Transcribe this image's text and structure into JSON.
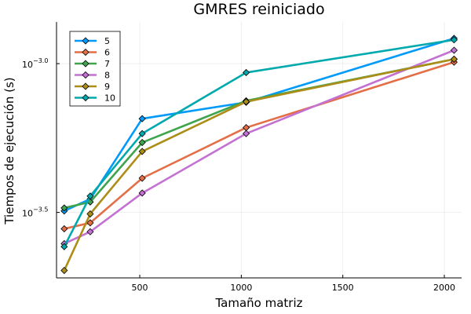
{
  "chart_data": {
    "type": "line",
    "title": "GMRES reiniciado",
    "xlabel": "Tamaño matriz",
    "ylabel": "Tiempos de ejecución (s)",
    "y_scale": "log10",
    "xlim": [
      90,
      2085
    ],
    "ylim_log10": [
      -3.72,
      -2.86
    ],
    "x_ticks": [
      500,
      1000,
      1500,
      2000
    ],
    "y_ticks": [
      {
        "log10": -3.5,
        "label": "10",
        "exp": "−3.5"
      },
      {
        "log10": -3.0,
        "label": "10",
        "exp": "−3.0"
      }
    ],
    "x": [
      128,
      256,
      512,
      1024,
      2048
    ],
    "series": [
      {
        "name": "5",
        "color": "#009AFA",
        "log10_values": [
          -3.495,
          -3.455,
          -3.185,
          -3.13,
          -2.915
        ]
      },
      {
        "name": "6",
        "color": "#E36F47",
        "log10_values": [
          -3.555,
          -3.535,
          -3.385,
          -3.215,
          -2.995
        ]
      },
      {
        "name": "7",
        "color": "#3EA44E",
        "log10_values": [
          -3.485,
          -3.465,
          -3.265,
          -3.125,
          -2.985
        ]
      },
      {
        "name": "8",
        "color": "#C371D2",
        "log10_values": [
          -3.605,
          -3.565,
          -3.435,
          -3.235,
          -2.955
        ]
      },
      {
        "name": "9",
        "color": "#AC8D18",
        "log10_values": [
          -3.695,
          -3.505,
          -3.295,
          -3.128,
          -2.985
        ]
      },
      {
        "name": "10",
        "color": "#00A9AD",
        "log10_values": [
          -3.615,
          -3.445,
          -3.235,
          -3.03,
          -2.92
        ]
      }
    ],
    "legend_position": "top-left",
    "grid": true
  }
}
